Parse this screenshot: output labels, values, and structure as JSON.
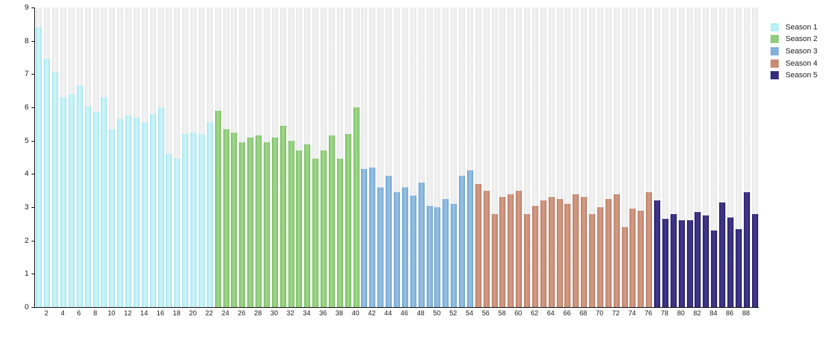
{
  "chart_data": {
    "type": "bar",
    "title": "",
    "xlabel": "",
    "ylabel": "",
    "ylim": [
      0,
      9
    ],
    "yticks": [
      "0",
      "1",
      "2",
      "3",
      "4",
      "5",
      "6",
      "7",
      "8",
      "9"
    ],
    "xticks": [
      2,
      4,
      6,
      8,
      10,
      12,
      14,
      16,
      18,
      20,
      22,
      24,
      26,
      28,
      30,
      32,
      34,
      36,
      38,
      40,
      42,
      44,
      46,
      48,
      50,
      52,
      54,
      56,
      58,
      60,
      62,
      64,
      66,
      68,
      70,
      72,
      74,
      76,
      78,
      80,
      82,
      84,
      86,
      88
    ],
    "total_bars": 89,
    "grid": false,
    "background_stripes": true,
    "legend_position": "top-right",
    "series": [
      {
        "name": "Season 1",
        "episode_start": 1,
        "swatch_color": "#b9eff6",
        "color_edge": "#a6e7f0",
        "color_center": "#d3f5f9",
        "values": [
          8.4,
          7.45,
          7.05,
          6.3,
          6.4,
          6.65,
          6.05,
          5.85,
          6.3,
          5.35,
          5.65,
          5.75,
          5.7,
          5.55,
          5.8,
          6.0,
          4.6,
          4.45,
          5.2,
          5.25,
          5.2,
          5.55
        ]
      },
      {
        "name": "Season 2",
        "episode_start": 23,
        "swatch_color": "#90cc7b",
        "color_edge": "#7ec267",
        "color_center": "#a3d78f",
        "values": [
          5.9,
          5.35,
          5.25,
          4.95,
          5.1,
          5.15,
          4.95,
          5.1,
          5.45,
          5.0,
          4.7,
          4.9,
          4.45,
          4.7,
          5.15,
          4.45,
          5.2,
          6.0
        ]
      },
      {
        "name": "Season 3",
        "episode_start": 41,
        "swatch_color": "#83b0d9",
        "color_edge": "#72a7d3",
        "color_center": "#9dc2e3",
        "values": [
          4.15,
          4.2,
          3.6,
          3.95,
          3.45,
          3.6,
          3.35,
          3.75,
          3.05,
          3.0,
          3.25,
          3.1,
          3.95,
          4.1
        ]
      },
      {
        "name": "Season 4",
        "episode_start": 55,
        "swatch_color": "#c98c76",
        "color_edge": "#bf8069",
        "color_center": "#d39e89",
        "values": [
          3.7,
          3.5,
          2.8,
          3.3,
          3.4,
          3.5,
          2.8,
          3.05,
          3.2,
          3.3,
          3.25,
          3.1,
          3.4,
          3.3,
          2.8,
          3.0,
          3.25,
          3.4,
          2.4,
          2.95,
          2.9,
          3.45
        ]
      },
      {
        "name": "Season 5",
        "episode_start": 77,
        "swatch_color": "#342b7c",
        "color_edge": "#2b2371",
        "color_center": "#443a8c",
        "values": [
          3.2,
          2.65,
          2.8,
          2.6,
          2.6,
          2.85,
          2.75,
          2.3,
          3.15,
          2.7,
          2.35,
          3.45,
          2.8
        ]
      }
    ],
    "backdrop_color_edge": "#e8e8e8",
    "backdrop_color_center": "#f3f3f3"
  }
}
